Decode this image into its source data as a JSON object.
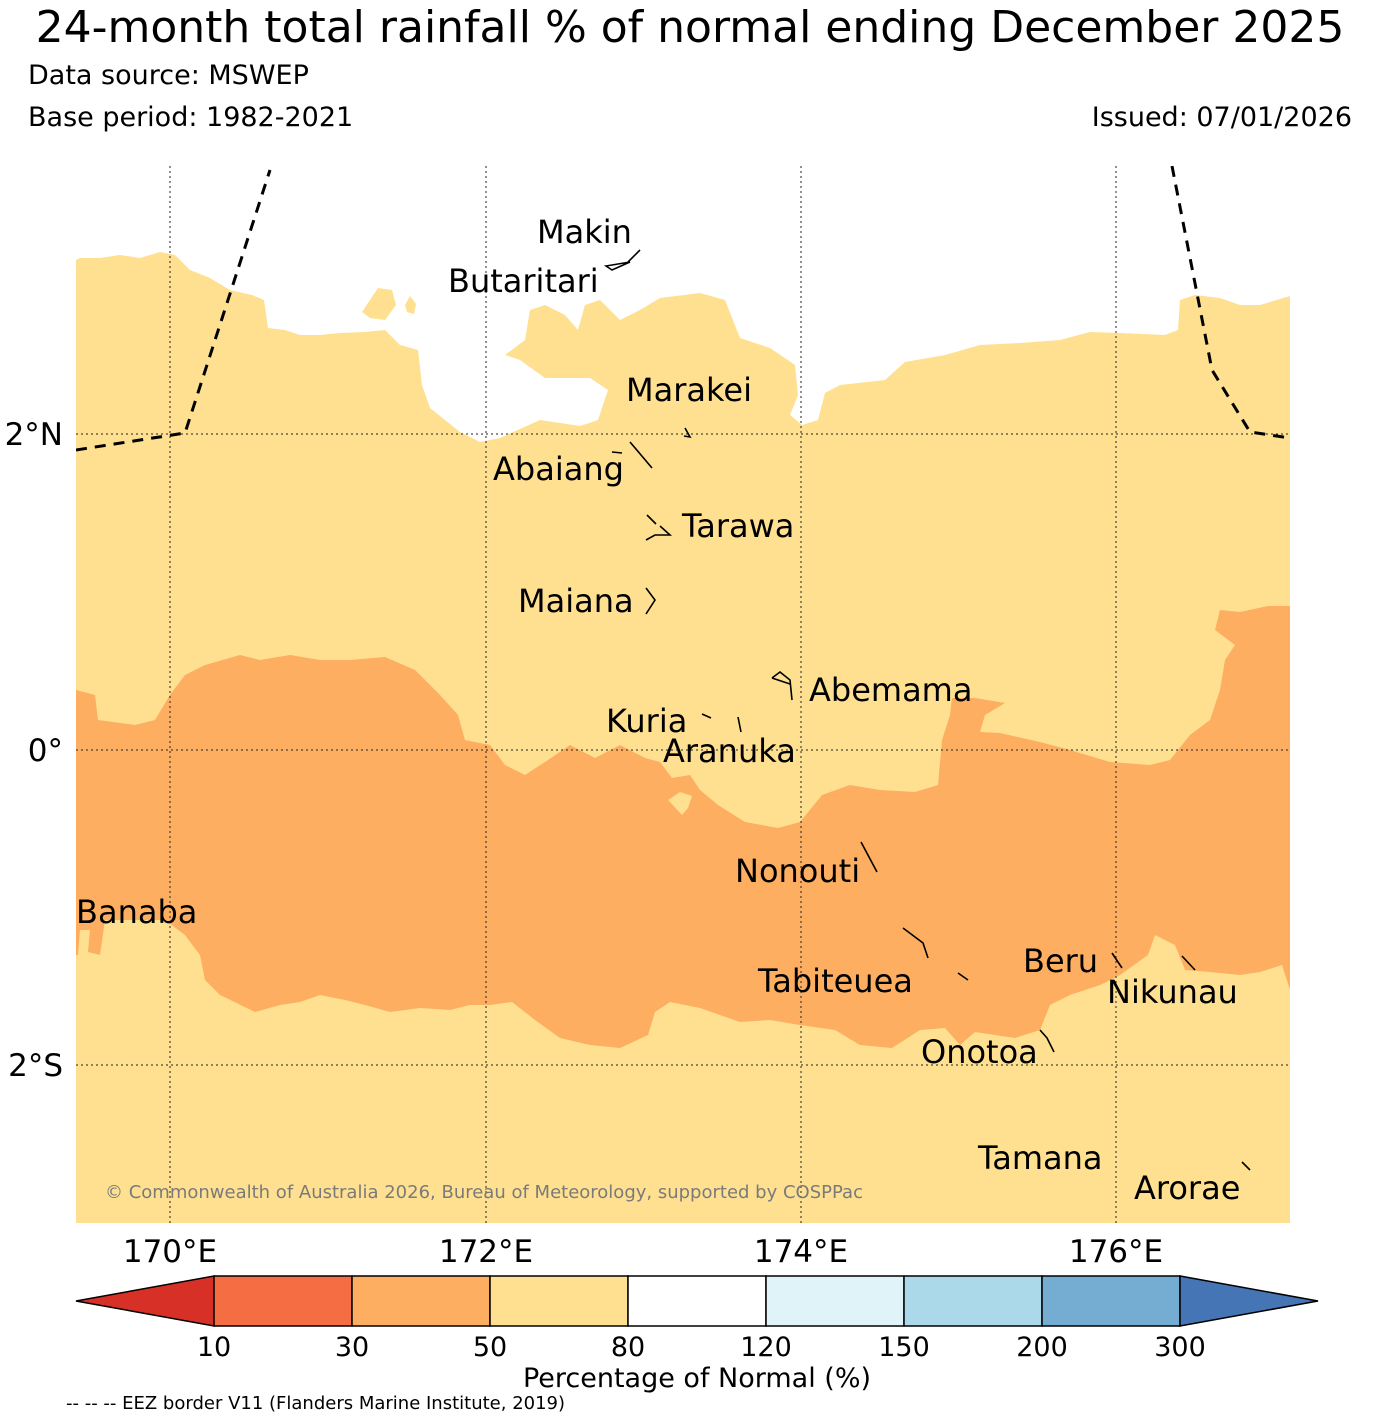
{
  "header": {
    "title": "24-month total rainfall % of normal ending December 2025",
    "source": "Data source: MSWEP",
    "base_period": "Base period: 1982-2021",
    "issued": "Issued: 07/01/2026"
  },
  "map": {
    "lon_ticks": [
      "170°E",
      "172°E",
      "174°E",
      "176°E"
    ],
    "lat_ticks": [
      "2°N",
      "0°",
      "2°S"
    ],
    "islands": [
      "Makin",
      "Butaritari",
      "Marakei",
      "Abaiang",
      "Tarawa",
      "Maiana",
      "Abemama",
      "Kuria",
      "Aranuka",
      "Nonouti",
      "Banaba",
      "Tabiteuea",
      "Beru",
      "Nikunau",
      "Onotoa",
      "Tamana",
      "Arorae"
    ],
    "copyright": "© Commonwealth of Australia 2026, Bureau of Meteorology, supported by COSPPac"
  },
  "colorbar": {
    "labels": [
      "10",
      "30",
      "50",
      "80",
      "120",
      "150",
      "200",
      "300"
    ],
    "colors": [
      "#d73027",
      "#f46d43",
      "#fdae61",
      "#fee090",
      "#ffffff",
      "#e0f3f8",
      "#abd9e9",
      "#74add1",
      "#4575b4"
    ],
    "title": "Percentage of Normal (%)"
  },
  "footer": "-- -- -- EEZ border V11 (Flanders Marine Institute, 2019)"
}
